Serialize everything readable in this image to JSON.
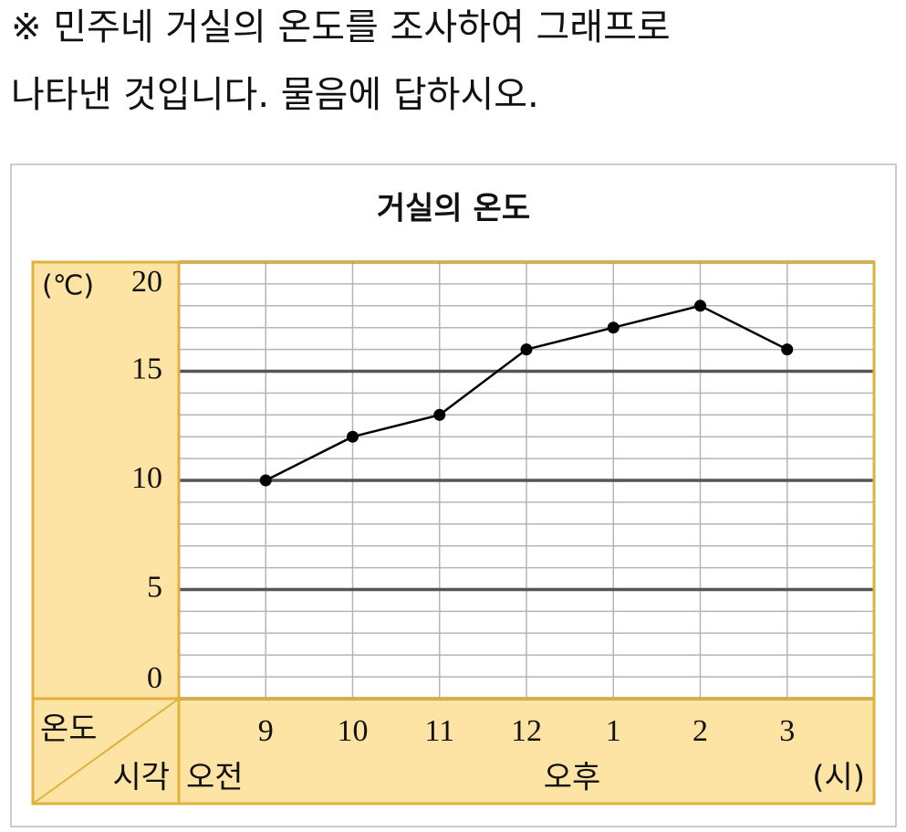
{
  "instruction": [
    "※ 민주네 거실의 온도를 조사하여 그래프로",
    "나타낸 것입니다. 물음에 답하시오."
  ],
  "chart_data": {
    "type": "line",
    "title": "거실의 온도",
    "y_unit": "(℃)",
    "row_header_value": "온도",
    "row_header_time": "시각",
    "am_label": "오전",
    "pm_label": "오후",
    "x_unit": "(시)",
    "categories": [
      "9",
      "10",
      "11",
      "12",
      "1",
      "2",
      "3"
    ],
    "values": [
      10,
      12,
      13,
      16,
      17,
      18,
      16
    ],
    "color": "#000000",
    "ylim": [
      0,
      20
    ],
    "yticks": [
      0,
      5,
      10,
      15,
      20
    ],
    "minor_grid_step": 1,
    "grid": true
  }
}
